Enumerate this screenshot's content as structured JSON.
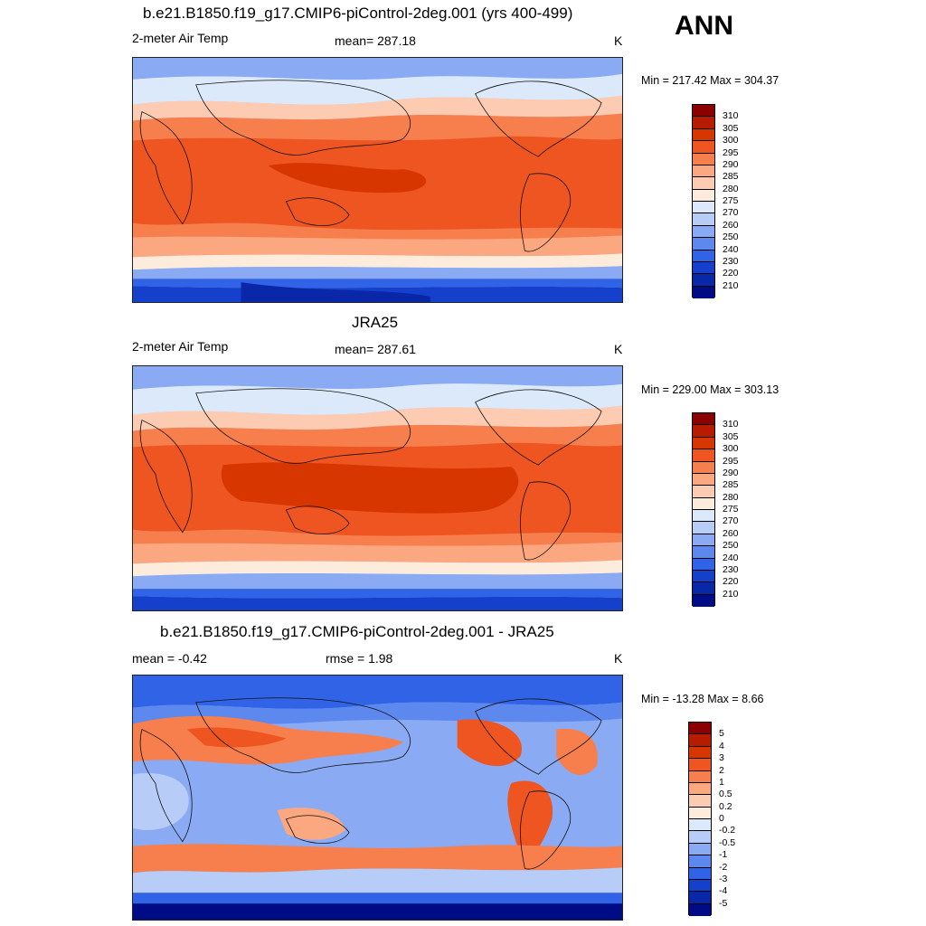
{
  "season": "ANN",
  "panels": [
    {
      "title": "b.e21.B1850.f19_g17.CMIP6-piControl-2deg.001 (yrs 400-499)",
      "left_label": "2-meter Air Temp",
      "center_label": "mean= 287.18",
      "units": "K",
      "minmax": "Min = 217.42 Max = 304.37",
      "colorbar_labels": [
        "310",
        "305",
        "300",
        "295",
        "290",
        "285",
        "280",
        "275",
        "270",
        "260",
        "250",
        "240",
        "230",
        "220",
        "210"
      ]
    },
    {
      "title": "JRA25",
      "left_label": "2-meter Air Temp",
      "center_label": "mean= 287.61",
      "units": "K",
      "minmax": "Min = 229.00 Max = 303.13",
      "colorbar_labels": [
        "310",
        "305",
        "300",
        "295",
        "290",
        "285",
        "280",
        "275",
        "270",
        "260",
        "250",
        "240",
        "230",
        "220",
        "210"
      ]
    },
    {
      "title": "b.e21.B1850.f19_g17.CMIP6-piControl-2deg.001 - JRA25",
      "left_label": "mean =  -0.42",
      "center_label": "rmse =   1.98",
      "units": "K",
      "minmax": "Min = -13.28 Max =   8.66",
      "colorbar_labels": [
        "5",
        "4",
        "3",
        "2",
        "1",
        "0.5",
        "0.2",
        "0",
        "-0.2",
        "-0.5",
        "-1",
        "-2",
        "-3",
        "-4",
        "-5"
      ]
    }
  ],
  "colors": {
    "abs_scale": [
      "#8b0000",
      "#b81c00",
      "#d83600",
      "#ee5520",
      "#f77f4d",
      "#fba77f",
      "#fdcbb2",
      "#fdebdc",
      "#dce9fa",
      "#b7ccf7",
      "#8aaaf3",
      "#5d89ef",
      "#3163e6",
      "#1540cc",
      "#0a27a8",
      "#000c85"
    ],
    "diff_scale": [
      "#8b0000",
      "#b81c00",
      "#d83600",
      "#ee5520",
      "#f77f4d",
      "#fba77f",
      "#fdcbb2",
      "#fdebdc",
      "#dce9fa",
      "#b7ccf7",
      "#8aaaf3",
      "#5d89ef",
      "#3163e6",
      "#1540cc",
      "#0a27a8",
      "#000c85"
    ]
  }
}
